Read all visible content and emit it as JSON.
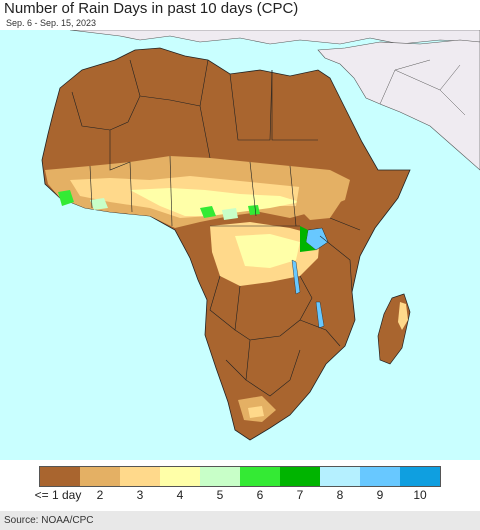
{
  "header": {
    "title": "Number of Rain Days in past 10 days (CPC)",
    "date_range": "Sep. 6 - Sep. 15, 2023"
  },
  "map": {
    "ocean_color": "#c9ffff",
    "non_africa_land_color": "#efebf1",
    "border_color": "#222222",
    "regions": [
      {
        "name": "sahara",
        "days_class": "<= 1 day"
      },
      {
        "name": "sahel-belt",
        "days_class": "3-5"
      },
      {
        "name": "gulf-of-guinea-coast",
        "days_class": "5-7"
      },
      {
        "name": "congo-basin",
        "days_class": "3-4"
      },
      {
        "name": "lake-victoria",
        "days_class": "7-8"
      },
      {
        "name": "southern-africa",
        "days_class": "<= 1 day"
      },
      {
        "name": "madagascar-east-coast",
        "days_class": "3"
      }
    ]
  },
  "legend": {
    "colors": [
      "#a9652f",
      "#e4b064",
      "#ffd98b",
      "#ffffa8",
      "#c8ffc8",
      "#34ea34",
      "#00b400",
      "#b5f0ff",
      "#68c8ff",
      "#0f9fe0"
    ],
    "labels": [
      "<= 1 day",
      "2",
      "3",
      "4",
      "5",
      "6",
      "7",
      "8",
      "9",
      "10"
    ]
  },
  "footer": {
    "source": "Source: NOAA/CPC"
  }
}
